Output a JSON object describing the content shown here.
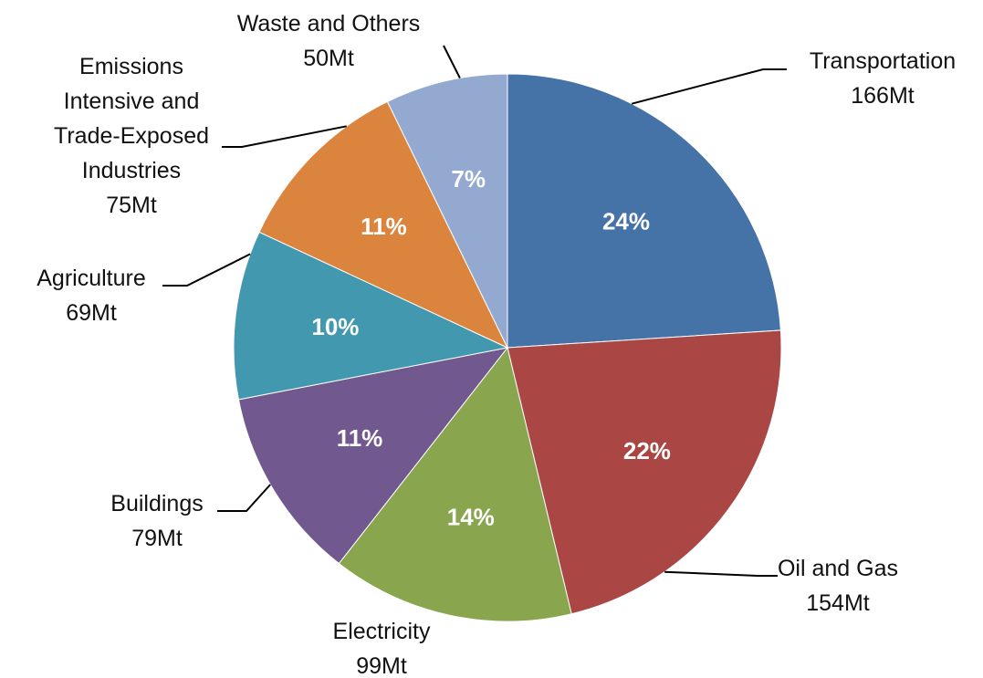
{
  "chart_data": {
    "type": "pie",
    "title": "",
    "categories": [
      "Transportation",
      "Oil and Gas",
      "Electricity",
      "Buildings",
      "Agriculture",
      "Emissions Intensive and Trade-Exposed Industries",
      "Waste and Others"
    ],
    "values": [
      166,
      154,
      99,
      79,
      69,
      75,
      50
    ],
    "unit": "Mt",
    "slices": [
      {
        "name": "Transportation",
        "value": 166,
        "value_label": "166Mt",
        "percent_label": "24%",
        "color": "#4572A7",
        "label_lines": [
          "Transportation",
          "166Mt"
        ]
      },
      {
        "name": "Oil and Gas",
        "value": 154,
        "value_label": "154Mt",
        "percent_label": "22%",
        "color": "#AA4643",
        "label_lines": [
          "Oil and Gas",
          "154Mt"
        ]
      },
      {
        "name": "Electricity",
        "value": 99,
        "value_label": "99Mt",
        "percent_label": "14%",
        "color": "#89A54E",
        "label_lines": [
          "Electricity",
          "99Mt"
        ]
      },
      {
        "name": "Buildings",
        "value": 79,
        "value_label": "79Mt",
        "percent_label": "11%",
        "color": "#71588F",
        "label_lines": [
          "Buildings",
          "79Mt"
        ]
      },
      {
        "name": "Agriculture",
        "value": 69,
        "value_label": "69Mt",
        "percent_label": "10%",
        "color": "#4198AF",
        "label_lines": [
          "Agriculture",
          "69Mt"
        ]
      },
      {
        "name": "Emissions Intensive and Trade-Exposed Industries",
        "value": 75,
        "value_label": "75Mt",
        "percent_label": "11%",
        "color": "#DB843D",
        "label_lines": [
          "Emissions",
          "Intensive and",
          "Trade-Exposed",
          "Industries",
          "75Mt"
        ]
      },
      {
        "name": "Waste and Others",
        "value": 50,
        "value_label": "50Mt",
        "percent_label": "7%",
        "color": "#93A9CF",
        "label_lines": [
          "Waste and Others",
          "50Mt"
        ]
      }
    ],
    "start_angle": "12 o'clock",
    "direction": "clockwise",
    "legend": "none",
    "data_labels": "category name and value outside with leader lines; percentage inside"
  }
}
